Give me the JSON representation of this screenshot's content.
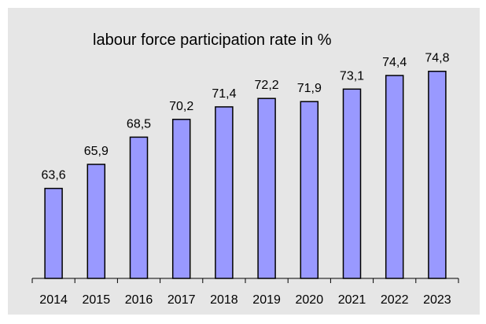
{
  "chart_data": {
    "type": "bar",
    "title": "labour force participation rate in %",
    "xlabel": "",
    "ylabel": "",
    "categories": [
      "2014",
      "2015",
      "2016",
      "2017",
      "2018",
      "2019",
      "2020",
      "2021",
      "2022",
      "2023"
    ],
    "values": [
      63.6,
      65.9,
      68.5,
      70.2,
      71.4,
      72.2,
      71.9,
      73.1,
      74.4,
      74.8
    ],
    "value_labels": [
      "63,6",
      "65,9",
      "68,5",
      "70,2",
      "71,4",
      "72,2",
      "71,9",
      "73,1",
      "74,4",
      "74,8"
    ],
    "ylim": [
      55,
      77
    ],
    "grid": false,
    "legend": "none"
  },
  "colors": {
    "panel_background": "#e6e6e6",
    "plot_background": "#e6e6e6",
    "bar_fill": "#9999ff",
    "bar_stroke": "#000000",
    "axis_color": "#000000",
    "frame": "#ffffff"
  }
}
